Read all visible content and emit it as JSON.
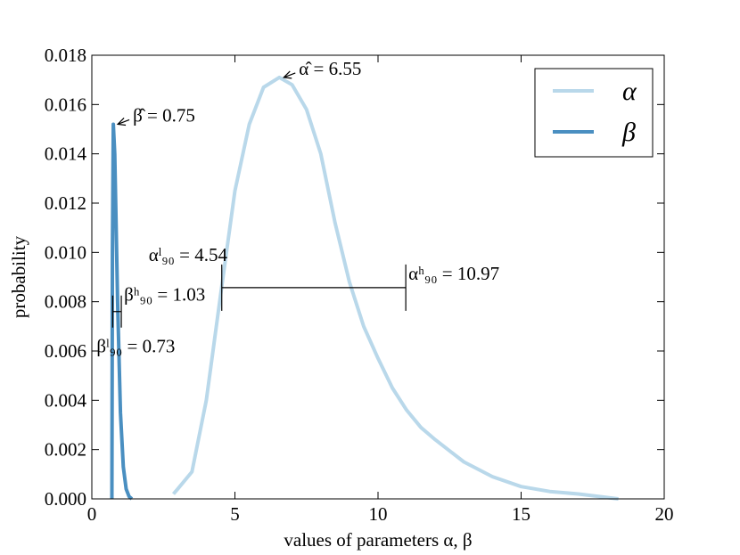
{
  "chart_data": {
    "type": "line",
    "xlabel": "values of parameters α, β",
    "ylabel": "probability",
    "xlim": [
      0,
      20
    ],
    "xticks": [
      0,
      5,
      10,
      15,
      20
    ],
    "ylim": [
      0,
      0.018
    ],
    "yticks": [
      {
        "value": 0,
        "label": "0.000"
      },
      {
        "value": 0.002,
        "label": "0.002"
      },
      {
        "value": 0.004,
        "label": "0.004"
      },
      {
        "value": 0.006,
        "label": "0.006"
      },
      {
        "value": 0.008,
        "label": "0.008"
      },
      {
        "value": 0.01,
        "label": "0.010"
      },
      {
        "value": 0.012,
        "label": "0.012"
      },
      {
        "value": 0.014,
        "label": "0.014"
      },
      {
        "value": 0.016,
        "label": "0.016"
      },
      {
        "value": 0.018,
        "label": "0.018"
      }
    ],
    "legend": "upper right",
    "series": [
      {
        "name": "α",
        "color": "#b9d8ea",
        "x": [
          2.85,
          3.0,
          3.5,
          4.0,
          4.5,
          5.0,
          5.5,
          6.0,
          6.55,
          7.0,
          7.5,
          8.0,
          8.5,
          9.0,
          9.5,
          10.0,
          10.5,
          11.0,
          11.5,
          12.0,
          13.0,
          14.0,
          15.0,
          16.0,
          17.0,
          18.4
        ],
        "values": [
          0.0002,
          0.0004,
          0.0011,
          0.004,
          0.0083,
          0.0125,
          0.0152,
          0.0167,
          0.0171,
          0.0168,
          0.0158,
          0.014,
          0.0112,
          0.0088,
          0.007,
          0.0057,
          0.0045,
          0.0036,
          0.0029,
          0.0024,
          0.0015,
          0.0009,
          0.0005,
          0.0003,
          0.0002,
          0.0
        ]
      },
      {
        "name": "β",
        "color": "#4a8fc1",
        "x": [
          0.7,
          0.72,
          0.75,
          0.8,
          0.85,
          0.9,
          1.0,
          1.1,
          1.2,
          1.3,
          1.4
        ],
        "values": [
          0.0,
          0.01,
          0.0152,
          0.014,
          0.011,
          0.008,
          0.0035,
          0.0013,
          0.0004,
          0.0001,
          0.0
        ]
      }
    ],
    "annotations": [
      {
        "text": "α̂ = 6.55",
        "x": 6.55,
        "y": 0.0171
      },
      {
        "text": "β̂ = 0.75",
        "x": 0.75,
        "y": 0.0152
      }
    ],
    "intervals": [
      {
        "low": 4.54,
        "high": 10.97,
        "y": 0.00857,
        "low_label": "αˡ₉₀ = 4.54",
        "high_label": "αʰ₉₀ = 10.97"
      },
      {
        "low": 0.73,
        "high": 1.03,
        "y": 0.0076,
        "low_label": "βˡ₉₀ = 0.73",
        "high_label": "βʰ₉₀ = 1.03"
      }
    ]
  }
}
